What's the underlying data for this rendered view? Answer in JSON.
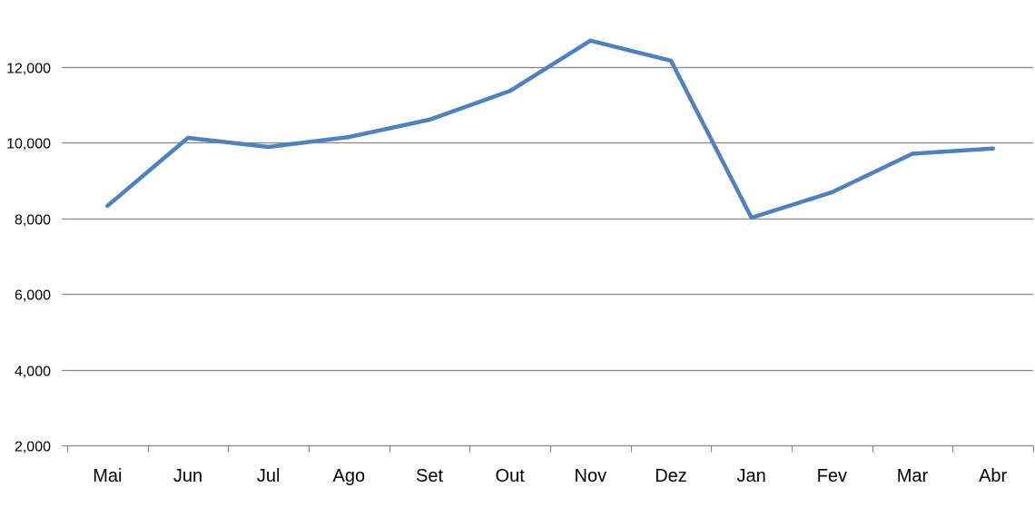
{
  "chart_data": {
    "type": "line",
    "categories": [
      "Mai",
      "Jun",
      "Jul",
      "Ago",
      "Set",
      "Out",
      "Nov",
      "Dez",
      "Jan",
      "Fev",
      "Mar",
      "Abr"
    ],
    "series": [
      {
        "values": [
          8330,
          10130,
          9890,
          10150,
          10610,
          11370,
          12700,
          12170,
          8020,
          8690,
          9710,
          9850
        ]
      }
    ],
    "ylim": [
      2000,
      13000
    ],
    "yticks": [
      2000,
      4000,
      6000,
      8000,
      10000,
      12000
    ],
    "ytick_labels": [
      "2,000",
      "4,000",
      "6,000",
      "8,000",
      "10,000",
      "12,000"
    ],
    "grid": true,
    "legend": "none",
    "title": "",
    "xlabel": "",
    "ylabel": ""
  },
  "colors": {
    "line": "#4F81BD",
    "gridline": "#868686",
    "axis": "#868686",
    "text": "#000000"
  }
}
